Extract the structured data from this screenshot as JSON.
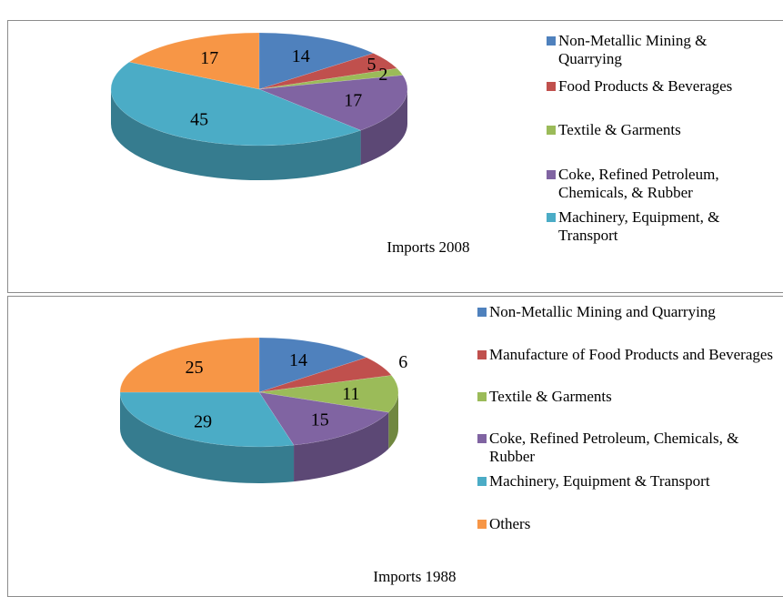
{
  "chart_data": [
    {
      "type": "pie3d",
      "title": "Imports 2008",
      "categories": [
        "Non-Metallic Mining & Quarrying",
        "Food Products & Beverages",
        "Textile & Garments",
        "Coke, Refined Petroleum, Chemicals, & Rubber",
        "Machinery, Equipment, & Transport",
        null
      ],
      "values": [
        14,
        5,
        2,
        17,
        45,
        17
      ],
      "colors": [
        "#4f81bd",
        "#c0504d",
        "#9bbb59",
        "#8064a2",
        "#4bacc6",
        "#f79646"
      ]
    },
    {
      "type": "pie3d",
      "title": "Imports 1988",
      "categories": [
        "Non-Metallic Mining and Quarrying",
        "Manufacture of Food Products and Beverages",
        "Textile & Garments",
        "Coke, Refined Petroleum, Chemicals, & Rubber",
        "Machinery, Equipment & Transport",
        "Others"
      ],
      "values": [
        14,
        6,
        11,
        15,
        29,
        25
      ],
      "colors": [
        "#4f81bd",
        "#c0504d",
        "#9bbb59",
        "#8064a2",
        "#4bacc6",
        "#f79646"
      ]
    }
  ]
}
